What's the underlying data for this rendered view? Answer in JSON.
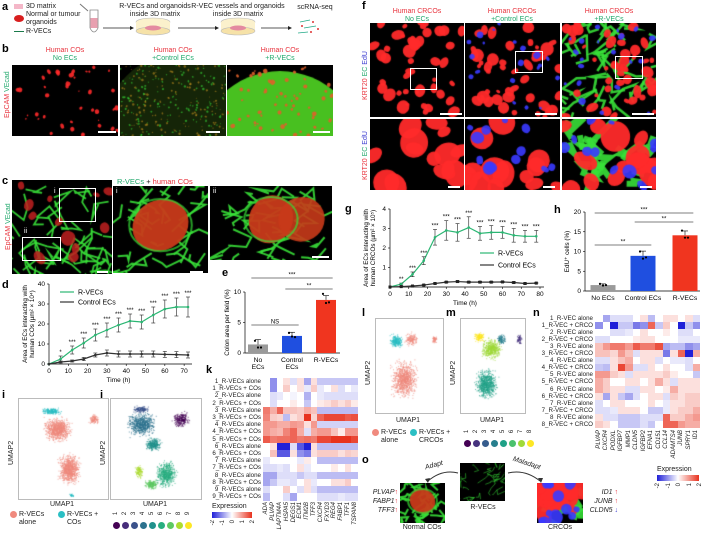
{
  "panel_letters": {
    "a": "a",
    "b": "b",
    "c": "c",
    "d": "d",
    "e": "e",
    "f": "f",
    "g": "g",
    "h": "h",
    "i": "i",
    "j": "j",
    "k": "k",
    "l": "l",
    "m": "m",
    "n": "n",
    "o": "o"
  },
  "a": {
    "legend": [
      "3D matrix",
      "Normal or tumour organoids",
      "R-VECs"
    ],
    "steps": [
      "R-VECs and organoids inside 3D matrix",
      "R-VEC vessels and organoids inside 3D matrix",
      "scRNA-seq"
    ]
  },
  "b": {
    "stain": {
      "red": "EpCAM",
      "green": "VEcad"
    },
    "columns": [
      {
        "line1": "Human COs",
        "line2": "No ECs"
      },
      {
        "line1": "Human COs",
        "line2": "+Control ECs"
      },
      {
        "line1": "Human COs",
        "line2": "+R-VECs"
      }
    ]
  },
  "c": {
    "title_green": "R-VECs",
    "title_plus": "+",
    "title_red": "human COs",
    "insets": [
      "i",
      "ii"
    ],
    "stain": {
      "red": "EpCAM",
      "green": "VEcad"
    }
  },
  "f": {
    "stain": {
      "red": "KRT20",
      "green": "EC",
      "blue": "EdU"
    },
    "columns": [
      {
        "line1": "Human CRCOs",
        "line2": "No ECs"
      },
      {
        "line1": "Human CRCOs",
        "line2": "+Control ECs"
      },
      {
        "line1": "Human CRCOs",
        "line2": "+R-VECs"
      }
    ]
  },
  "colors": {
    "rvecs": "#2bb673",
    "control": "#333333",
    "no_ecs_bar": "#9a9a9a",
    "control_bar": "#1f4fe0",
    "rvecs_bar": "#f0351f",
    "alone": "#f08a7e",
    "cocult": "#2bbfc4",
    "heat_low": "#2020d8",
    "heat_mid": "#ffffff",
    "heat_high": "#e8321e"
  },
  "chart_data": [
    {
      "id": "d",
      "type": "line",
      "ylabel": "Area of ECs interacting with human COs (µm² × 10⁴)",
      "xlabel": "Time (h)",
      "xlim": [
        0,
        72
      ],
      "ylim": [
        0,
        40
      ],
      "xticks": [
        0,
        10,
        20,
        30,
        40,
        50,
        60,
        70
      ],
      "yticks": [
        0,
        10,
        20,
        30,
        40
      ],
      "legend": "top-left",
      "x": [
        0,
        6,
        12,
        18,
        24,
        30,
        36,
        42,
        48,
        54,
        60,
        66,
        72
      ],
      "series": [
        {
          "name": "R-VECs",
          "values": [
            0,
            2.5,
            7,
            10.5,
            14.5,
            17,
            19.5,
            21.5,
            21,
            24.5,
            27.5,
            28.5,
            28.5
          ],
          "errors": [
            0,
            1.5,
            2,
            2.5,
            3,
            3.5,
            3.5,
            3.5,
            3.5,
            4,
            4.5,
            4.5,
            5
          ]
        },
        {
          "name": "Control ECs",
          "values": [
            0,
            1,
            1.5,
            2.5,
            4.5,
            5.5,
            5,
            5,
            5,
            5,
            4.8,
            4.7,
            4.5
          ],
          "errors": [
            0,
            0.5,
            0.5,
            0.8,
            1,
            1.5,
            1.5,
            1.5,
            1.5,
            1.5,
            1.5,
            1.5,
            1.5
          ]
        }
      ],
      "significance": [
        "",
        "*",
        "***",
        "***",
        "***",
        "***",
        "***",
        "***",
        "***",
        "***",
        "***",
        "***",
        "***"
      ]
    },
    {
      "id": "e",
      "type": "bar",
      "ylabel": "Colon area per field (%)",
      "categories": [
        "No ECs",
        "Control ECs",
        "R-VECs"
      ],
      "values": [
        1.4,
        2.8,
        8.7
      ],
      "errors": [
        0.8,
        0.6,
        0.7
      ],
      "points": [
        [
          2,
          0.9,
          0.9
        ],
        [
          3.3,
          2.7,
          2.6
        ],
        [
          9.7,
          8.2,
          8.3
        ]
      ],
      "ylim": [
        0,
        10
      ],
      "yticks": [
        0,
        5,
        10
      ],
      "comparisons": [
        {
          "from": 0,
          "to": 1,
          "label": "NS"
        },
        {
          "from": 1,
          "to": 2,
          "label": "**"
        },
        {
          "from": 0,
          "to": 2,
          "label": "***"
        }
      ]
    },
    {
      "id": "g",
      "type": "line",
      "ylabel": "Area of ECs interacting with human CRCOs (µm² × 10⁵)",
      "xlabel": "Time (h)",
      "xlim": [
        0,
        80
      ],
      "ylim": [
        0,
        4
      ],
      "xticks": [
        0,
        10,
        20,
        30,
        40,
        50,
        60,
        70,
        80
      ],
      "yticks": [
        1,
        2,
        3,
        4
      ],
      "legend": "right",
      "x": [
        0,
        6,
        12,
        18,
        24,
        30,
        36,
        42,
        48,
        54,
        60,
        66,
        72,
        78
      ],
      "series": [
        {
          "name": "R-VECs",
          "values": [
            0,
            0.15,
            0.65,
            1.35,
            2.55,
            2.9,
            2.8,
            3.05,
            2.75,
            2.8,
            2.8,
            2.65,
            2.6,
            2.6
          ],
          "errors": [
            0,
            0.05,
            0.12,
            0.2,
            0.4,
            0.5,
            0.45,
            0.55,
            0.35,
            0.35,
            0.3,
            0.35,
            0.3,
            0.3
          ]
        },
        {
          "name": "Control ECs",
          "values": [
            0,
            0.02,
            0.05,
            0.1,
            0.18,
            0.25,
            0.28,
            0.25,
            0.25,
            0.25,
            0.26,
            0.23,
            0.18,
            0.2
          ],
          "errors": [
            0,
            0.01,
            0.02,
            0.03,
            0.03,
            0.04,
            0.04,
            0.04,
            0.04,
            0.04,
            0.04,
            0.04,
            0.03,
            0.03
          ]
        }
      ],
      "significance": [
        "",
        "**",
        "***",
        "***",
        "***",
        "***",
        "***",
        "***",
        "***",
        "***",
        "***",
        "***",
        "***",
        "***"
      ]
    },
    {
      "id": "h",
      "type": "bar",
      "ylabel": "EdU⁺ cells (%)",
      "categories": [
        "No ECs",
        "Control ECs",
        "R-VECs"
      ],
      "values": [
        1.5,
        8.9,
        14.1
      ],
      "errors": [
        0.3,
        1.2,
        1.1
      ],
      "points": [
        [
          1.8,
          1.4,
          1.5
        ],
        [
          10,
          8.2,
          8.5
        ],
        [
          15.3,
          13.5,
          13.5
        ]
      ],
      "ylim": [
        0,
        20
      ],
      "yticks": [
        0,
        5,
        10,
        15,
        20
      ],
      "comparisons": [
        {
          "from": 0,
          "to": 1,
          "label": "**"
        },
        {
          "from": 1,
          "to": 2,
          "label": "**"
        },
        {
          "from": 0,
          "to": 2,
          "label": "***"
        }
      ]
    },
    {
      "id": "k",
      "type": "heatmap",
      "legend_title": "Expression",
      "legend_ticks": [
        "-2",
        "-1",
        "0",
        "1",
        "2"
      ],
      "rows": [
        "1_R-VECs alone",
        "1_R-VECs + COs",
        "2_R-VECs alone",
        "2_R-VECs + COs",
        "3_R-VECs alone",
        "3_R-VECs + COs",
        "4_R-VECs alone",
        "4_R-VECs + COs",
        "5_R-VECs + COs",
        "6_R-VECs alone",
        "6_R-VECs + COs",
        "7_R-VECs alone",
        "7_R-VECs + COs",
        "8_R-VECs alone",
        "8_R-VECs + COs",
        "9_R-VECs alone",
        "9_R-VECs + COs"
      ],
      "columns": [
        "ADA",
        "PLVAP",
        "LAPTM4A",
        "HSPA5",
        "DEGS1",
        "ECM1",
        "ITM2B",
        "TFF3",
        "CXCR4",
        "FXYD3",
        "REG4",
        "FABP1",
        "TFF1",
        "TSPAN8"
      ],
      "values": [
        [
          0,
          -1,
          0,
          0.3,
          -0.3,
          0.3,
          -0.8,
          0.3,
          -0.5,
          -0.5,
          -0.5,
          -0.5,
          -0.5,
          -0.5
        ],
        [
          0,
          -1,
          0,
          0.5,
          0,
          0.3,
          -0.2,
          0.5,
          -0.2,
          0,
          0.3,
          -0.3,
          0,
          -0.2
        ],
        [
          0,
          -0.3,
          -0.2,
          0,
          -0.1,
          0,
          -0.7,
          0,
          -0.2,
          -0.3,
          -0.3,
          -0.3,
          -0.3,
          -0.3
        ],
        [
          0,
          -0.3,
          0,
          0,
          0.2,
          0,
          -0.5,
          0,
          0.2,
          0.3,
          0.5,
          0.3,
          0.5,
          0.2
        ],
        [
          1.3,
          0.8,
          1.5,
          0.6,
          0.6,
          0.5,
          0.8,
          0.6,
          -0.6,
          -0.6,
          -0.6,
          -0.6,
          -0.6,
          -0.6
        ],
        [
          1.2,
          0.5,
          0.4,
          -0.6,
          0.3,
          0.5,
          2,
          0.4,
          1.5,
          1.8,
          1.8,
          1.8,
          1.6,
          1.7
        ],
        [
          1,
          1,
          0.8,
          0.8,
          1,
          0.9,
          0.3,
          1,
          -0.4,
          -0.4,
          -0.4,
          -0.4,
          -0.4,
          -0.4
        ],
        [
          1,
          0.8,
          0.7,
          1.2,
          1.5,
          0.8,
          -0.3,
          0.8,
          1,
          1,
          0.6,
          0.2,
          1,
          1
        ],
        [
          1.6,
          1.3,
          1.4,
          1.4,
          1.5,
          1.3,
          1.4,
          1.3,
          1.8,
          1.8,
          2,
          2,
          2,
          1.8
        ],
        [
          0,
          0.3,
          -2,
          -2,
          -0.3,
          -1.5,
          -2,
          0.3,
          -0.6,
          -0.6,
          -0.6,
          -0.6,
          -0.6,
          -0.6
        ],
        [
          0,
          0.6,
          -1.5,
          -1.5,
          0.3,
          -1,
          -1.2,
          0.3,
          0.5,
          0.5,
          0.5,
          0.3,
          0.5,
          0.4
        ],
        [
          -0.2,
          0,
          0,
          0,
          0,
          -0.2,
          0.2,
          0,
          -0.6,
          -0.6,
          -0.6,
          -0.6,
          -0.6,
          -0.6
        ],
        [
          -0.3,
          -0.3,
          -0.2,
          -0.3,
          0,
          0.3,
          -0.2,
          0,
          0,
          0,
          0.2,
          0,
          0.3,
          0
        ],
        [
          -0.8,
          -0.8,
          -0.3,
          -0.3,
          -0.3,
          -0.5,
          -0.3,
          -0.3,
          -0.6,
          -0.6,
          -0.6,
          -0.6,
          -0.6,
          -0.6
        ],
        [
          -0.8,
          -0.5,
          -0.2,
          -0.2,
          -0.3,
          0,
          0.3,
          -0.2,
          0,
          0,
          0.3,
          0.3,
          0.5,
          0
        ],
        [
          -0.3,
          0,
          0,
          0.5,
          0,
          -0.3,
          0.3,
          -0.3,
          -0.6,
          -0.6,
          -0.6,
          -0.6,
          -0.6,
          -0.6
        ],
        [
          -0.6,
          0,
          0,
          -0.3,
          -0.8,
          0,
          0,
          0,
          -0.3,
          -0.3,
          -0.3,
          -0.2,
          -0.3,
          -0.3
        ]
      ]
    },
    {
      "id": "n",
      "type": "heatmap",
      "legend_title": "Expression",
      "legend_ticks": [
        "-2",
        "-1",
        "0",
        "1",
        "2"
      ],
      "rows": [
        "1_R-VEC alone",
        "1_R-VEC + CRCO",
        "2_R-VEC alone",
        "2_R-VEC + CRCO",
        "3_R-VEC alone",
        "3_R-VEC + CRCO",
        "4_R-VEC alone",
        "4_R-VEC + CRCO",
        "5_R-VEC alone",
        "5_R-VEC + CRCO",
        "6_R-VEC alone",
        "6_R-VEC + CRCO",
        "7_R-VEC alone",
        "7_R-VEC + CRCO",
        "8_R-VEC alone",
        "8_R-VEC + CRCO"
      ],
      "columns": [
        "PLVAP",
        "CXCR4",
        "PODXL",
        "IGFBP7",
        "MMP1",
        "CLDN5",
        "IGFBP2",
        "EFNA1",
        "CD151",
        "CCL14",
        "ADAMTS4",
        "JUNB",
        "SPRY1",
        "ID1"
      ],
      "values": [
        [
          0,
          -0.8,
          -0.3,
          -0.3,
          -0.3,
          0,
          0.3,
          -0.6,
          0,
          0.3,
          0.3,
          0,
          0.3,
          -0.3
        ],
        [
          -1,
          0,
          -2,
          -0.5,
          -0.5,
          -1.2,
          -1,
          1.5,
          -0.5,
          0.5,
          0,
          -2,
          -0.5,
          -1
        ],
        [
          0,
          0,
          -0.3,
          -0.3,
          -0.2,
          0,
          0.3,
          0,
          0,
          0.2,
          0,
          -0.3,
          -0.3,
          0
        ],
        [
          -0.3,
          -0.3,
          0,
          0,
          0,
          0.2,
          0.3,
          0.3,
          0,
          0,
          0,
          -0.2,
          -0.2,
          -0.2
        ],
        [
          0.6,
          1,
          1.3,
          1.3,
          1,
          1.6,
          1.3,
          1.3,
          1.7,
          -0.8,
          -0.6,
          -0.6,
          -1,
          -0.8
        ],
        [
          0.6,
          0.6,
          0.4,
          1,
          0.6,
          -0.3,
          0.3,
          0.3,
          0.3,
          -1.2,
          0.3,
          1.5,
          -2,
          0.8
        ],
        [
          -0.3,
          -0.3,
          0.3,
          0.6,
          0.8,
          0,
          0.3,
          0.3,
          -0.3,
          0,
          -0.2,
          -0.2,
          -0.3,
          0
        ],
        [
          -0.5,
          -0.6,
          0.3,
          1.8,
          1,
          -0.3,
          -0.3,
          0.3,
          0,
          0.3,
          0,
          0,
          -0.3,
          0.8
        ],
        [
          1,
          1,
          0.5,
          0.3,
          -0.3,
          0.3,
          0.3,
          0.3,
          0.3,
          0.5,
          0.2,
          0,
          0,
          -0.5
        ],
        [
          0.8,
          0.5,
          0,
          0,
          0.3,
          0.3,
          0,
          0.3,
          0.8,
          0.3,
          -0.3,
          0.3,
          0.3,
          0.3
        ],
        [
          0.8,
          0.5,
          0.3,
          0.3,
          -0.3,
          -0.3,
          0.3,
          0.3,
          0,
          0.2,
          0.8,
          0.3,
          0.3,
          0.3
        ],
        [
          0.3,
          -0.8,
          0.3,
          -0.5,
          -0.8,
          -0.3,
          0,
          0.3,
          0.3,
          -0.3,
          0.5,
          0.3,
          0.5,
          0.5
        ],
        [
          -0.3,
          0,
          0.3,
          0.3,
          0,
          0,
          0,
          0.3,
          0,
          -0.2,
          0.3,
          0.3,
          0.5,
          0.5
        ],
        [
          -0.3,
          -0.3,
          -0.2,
          0.3,
          0.3,
          0.3,
          0,
          -0.5,
          -0.5,
          -0.2,
          0.3,
          0.5,
          0.5,
          0.8
        ],
        [
          0.3,
          -0.3,
          -0.3,
          -0.5,
          -0.5,
          -0.5,
          -0.3,
          -0.3,
          -0.3,
          1.5,
          0.5,
          0.5,
          0.8,
          1
        ],
        [
          0.5,
          0.3,
          0,
          -0.5,
          -0.5,
          -0.5,
          -0.3,
          -0.5,
          0,
          1.5,
          1.5,
          1,
          0.8,
          0.8
        ]
      ]
    }
  ],
  "umap": {
    "xlabel": "UMAP1",
    "ylabel": "UMAP2",
    "i": {
      "legend": [
        "R-VECs alone",
        "R-VECs + COs"
      ]
    },
    "j": {
      "clusters": [
        "1",
        "2",
        "3",
        "4",
        "5",
        "6",
        "7",
        "8",
        "9"
      ],
      "colors": [
        "#440154",
        "#472d7b",
        "#3b528b",
        "#2c728e",
        "#21918c",
        "#28ae80",
        "#5ec962",
        "#addc30",
        "#fde725"
      ]
    },
    "l": {
      "legend": [
        "R-VECs alone",
        "R-VECs + CRCOs"
      ]
    },
    "m": {
      "clusters": [
        "1",
        "2",
        "3",
        "4",
        "5",
        "6",
        "7",
        "8"
      ],
      "colors": [
        "#440154",
        "#46327e",
        "#365c8d",
        "#277f8e",
        "#1fa187",
        "#4ac16d",
        "#a0da39",
        "#fde725"
      ]
    }
  },
  "o": {
    "center": "R-VECs",
    "left_label": "Normal COs",
    "right_label": "CRCOs",
    "adapt": "Adapt",
    "maladapt": "Maladapt",
    "left_genes": [
      {
        "gene": "PLVAP",
        "dir": "↑"
      },
      {
        "gene": "FABP1",
        "dir": "↑"
      },
      {
        "gene": "TFF3",
        "dir": "↑"
      }
    ],
    "right_genes": [
      {
        "gene": "ID1",
        "dir": "↑"
      },
      {
        "gene": "JUNB",
        "dir": "↑"
      },
      {
        "gene": "CLDN5",
        "dir": "↓"
      }
    ]
  }
}
